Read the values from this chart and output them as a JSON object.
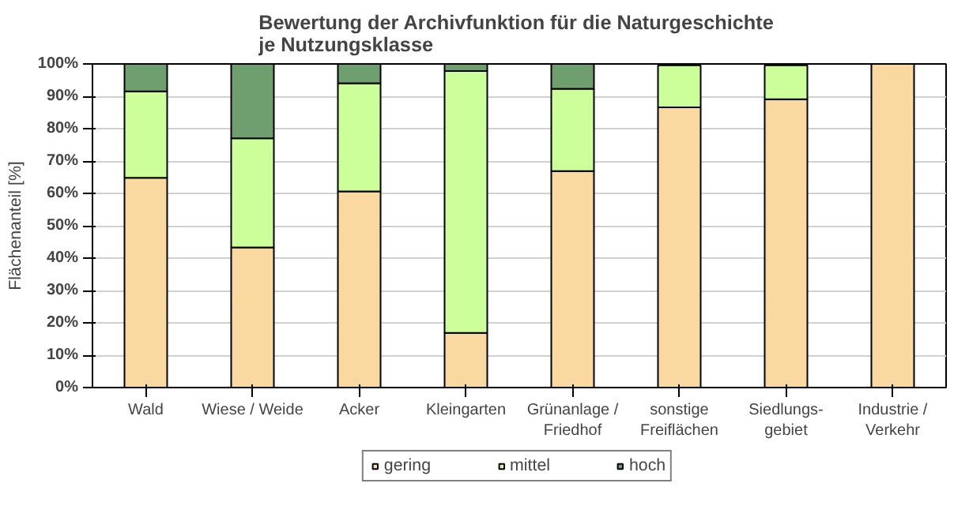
{
  "chart_data": {
    "type": "bar",
    "title": "Bewertung der Archivfunktion  für die Naturgeschichte\nje Nutzungsklasse",
    "ylabel": "Flächenanteil [%]",
    "categories": [
      "Wald",
      "Wiese / Weide",
      "Acker",
      "Kleingarten",
      "Grünanlage /\nFriedhof",
      "sonstige\nFreiflächen",
      "Siedlungs-\ngebiet",
      "Industrie /\nVerkehr"
    ],
    "stacked": true,
    "series": [
      {
        "name": "gering",
        "color": "#fad9a0",
        "values": [
          64.8,
          43.3,
          60.6,
          16.9,
          66.9,
          86.6,
          89.1,
          100
        ]
      },
      {
        "name": "mittel",
        "color": "#ccff99",
        "values": [
          26.7,
          33.7,
          33.4,
          80.9,
          25.4,
          13.0,
          10.5,
          null
        ]
      },
      {
        "name": "hoch",
        "color": "#6f9f6f",
        "values": [
          8.5,
          23.0,
          6.0,
          2.2,
          7.7,
          null,
          null,
          null
        ]
      }
    ],
    "ylim": [
      0,
      100
    ],
    "yticks": [
      {
        "value": 0,
        "label": "0%"
      },
      {
        "value": 10,
        "label": "10%"
      },
      {
        "value": 20,
        "label": "20%"
      },
      {
        "value": 30,
        "label": "30%"
      },
      {
        "value": 40,
        "label": "40%"
      },
      {
        "value": 50,
        "label": "50%"
      },
      {
        "value": 60,
        "label": "60%"
      },
      {
        "value": 70,
        "label": "70%"
      },
      {
        "value": 80,
        "label": "80%"
      },
      {
        "value": 90,
        "label": "90%"
      },
      {
        "value": 100,
        "label": "100%"
      }
    ],
    "grid": "y",
    "legend": "bottom"
  }
}
